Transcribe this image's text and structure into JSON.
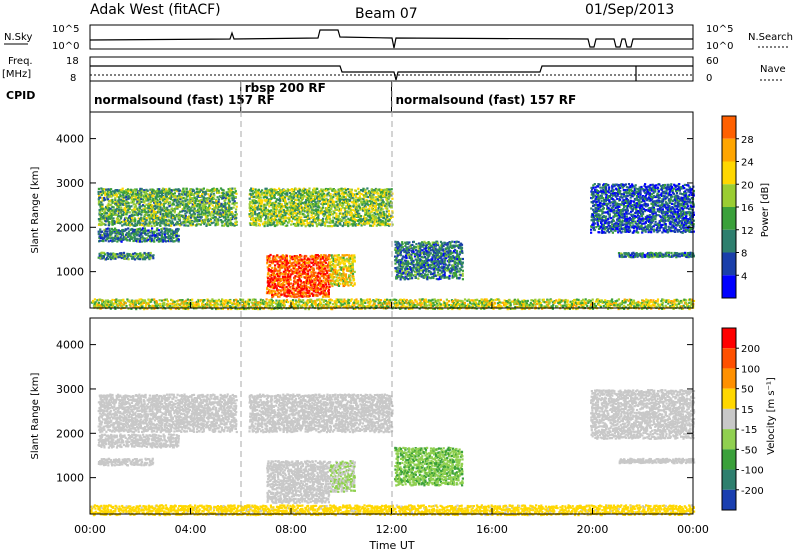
{
  "header": {
    "radar": "Adak West (fitACF)",
    "beam": "Beam 07",
    "date": "01/Sep/2013"
  },
  "strip": {
    "nsky_label": "N.Sky",
    "nsky_ticks": [
      "10^5",
      "10^0"
    ],
    "nsearch_label": "N.Search",
    "nsearch_ticks": [
      "10^5",
      "10^0"
    ],
    "freq_label": "Freq.",
    "freq_unit": "[MHz]",
    "freq_ticks": [
      "18",
      "8"
    ],
    "nave_label": "Nave",
    "nave_ticks": [
      "60",
      "0"
    ],
    "cpid_label": "CPID",
    "cpid_segments": [
      {
        "start_h": 0,
        "end_h": 6,
        "label": "normalsound (fast) 157 RF"
      },
      {
        "start_h": 6,
        "end_h": 12,
        "label": "rbsp 200 RF"
      },
      {
        "start_h": 12,
        "end_h": 24,
        "label": "normalsound (fast) 157 RF"
      }
    ]
  },
  "power_panel": {
    "ylabel": "Slant Range [km]",
    "colorbar_label": "Power [dB]",
    "colorbar_ticks": [
      "28",
      "24",
      "20",
      "16",
      "12",
      "8",
      "4"
    ],
    "colors": [
      "#0000ff",
      "#1a3faa",
      "#2e7f6e",
      "#3aa03a",
      "#9acd32",
      "#ffd700",
      "#ffa500",
      "#ff6000",
      "#ff0000"
    ]
  },
  "velocity_panel": {
    "ylabel": "Slant Range [km]",
    "colorbar_label": "Velocity [m s⁻¹]",
    "colorbar_ticks": [
      "200",
      "100",
      "50",
      "15",
      "-15",
      "-50",
      "-100",
      "-200"
    ],
    "colors": [
      "#1a3fb0",
      "#2e7f6e",
      "#3aa03a",
      "#90d050",
      "#c8c8c8",
      "#ffd700",
      "#ff9000",
      "#ff5000",
      "#ff0000"
    ]
  },
  "x_axis": {
    "label": "Time UT",
    "ticks": [
      "00:00",
      "04:00",
      "08:00",
      "12:00",
      "16:00",
      "20:00",
      "00:00"
    ]
  },
  "y_axis": {
    "ticks": [
      "4000",
      "3000",
      "2000",
      "1000"
    ]
  },
  "chart_data": {
    "type": "heatmap",
    "title": "Adak West (fitACF)",
    "x_range_hours": [
      0,
      24
    ],
    "y_range_km": [
      180,
      4600
    ],
    "xlabel": "Time UT",
    "ylabel": "Slant Range [km]",
    "power_range_db": [
      0,
      30
    ],
    "velocity_range_ms": [
      -200,
      200
    ],
    "regions": [
      {
        "t0": 0.3,
        "t1": 5.8,
        "r0": 2050,
        "r1": 2900,
        "power": 12,
        "velocity": 0
      },
      {
        "t0": 0.3,
        "t1": 3.5,
        "r0": 1700,
        "r1": 2000,
        "power": 8,
        "velocity": 0
      },
      {
        "t0": 0.3,
        "t1": 2.5,
        "r0": 1300,
        "r1": 1450,
        "power": 10,
        "velocity": 0
      },
      {
        "t0": 6.3,
        "t1": 12.0,
        "r0": 2050,
        "r1": 2900,
        "power": 14,
        "velocity": 0
      },
      {
        "t0": 7.0,
        "t1": 9.5,
        "r0": 450,
        "r1": 1400,
        "power": 26,
        "velocity": 0
      },
      {
        "t0": 9.5,
        "t1": 10.5,
        "r0": 700,
        "r1": 1400,
        "power": 18,
        "velocity": -20
      },
      {
        "t0": 12.1,
        "t1": 14.8,
        "r0": 850,
        "r1": 1700,
        "power": 8,
        "velocity": -60
      },
      {
        "t0": 19.9,
        "t1": 24.0,
        "r0": 1900,
        "r1": 3000,
        "power": 6,
        "velocity": 0
      },
      {
        "t0": 21.0,
        "t1": 24.0,
        "r0": 1350,
        "r1": 1450,
        "power": 8,
        "velocity": 0
      },
      {
        "t0": 0.0,
        "t1": 24.0,
        "r0": 180,
        "r1": 400,
        "power": 16,
        "velocity": 40
      }
    ]
  }
}
